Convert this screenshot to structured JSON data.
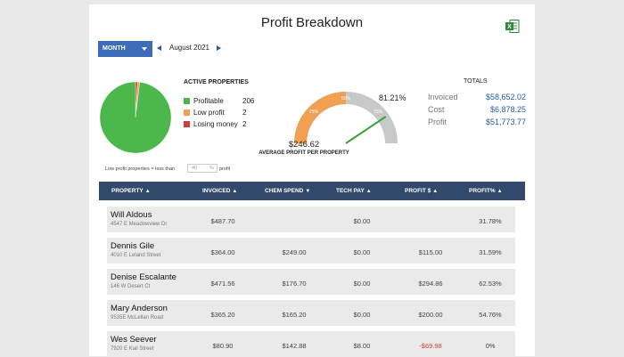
{
  "page": {
    "title": "Profit Breakdown",
    "export_icon": "excel-export-icon"
  },
  "period": {
    "select_label": "MONTH",
    "current": "August 2021"
  },
  "active_properties": {
    "title": "ACTIVE PROPERTIES",
    "items": [
      {
        "label": "Profitable",
        "count": "206",
        "color": "#4cb84c"
      },
      {
        "label": "Low profit",
        "count": "2",
        "color": "#f0a050"
      },
      {
        "label": "Losing money",
        "count": "2",
        "color": "#d23b3b"
      }
    ],
    "low_profit_note": "Low profit properties = less than",
    "low_profit_value": "40",
    "low_profit_unit": "%",
    "low_profit_suffix": "profit"
  },
  "gauge": {
    "percent": "81.21%",
    "average": "$246.62",
    "caption": "AVERAGE PROFIT PER PROPERTY",
    "ticks": [
      "25%",
      "50%",
      "75%"
    ],
    "value_fraction": 0.8121,
    "colors": {
      "low": "#f0a050",
      "rest": "#c8c8c8",
      "needle": "#3aa03a"
    }
  },
  "totals": {
    "title": "TOTALS",
    "rows": [
      {
        "label": "Invoiced",
        "value": "$58,652.02"
      },
      {
        "label": "Cost",
        "value": "$6,878.25"
      },
      {
        "label": "Profit",
        "value": "$51,773.77"
      }
    ]
  },
  "table": {
    "headers": [
      {
        "label": "PROPERTY",
        "icon": "sort-icon"
      },
      {
        "label": "INVOICED",
        "icon": "sort-icon"
      },
      {
        "label": "CHEM SPEND",
        "icon": "sort-desc-icon"
      },
      {
        "label": "TECH PAY",
        "icon": "sort-icon"
      },
      {
        "label": "PROFIT $",
        "icon": "sort-icon"
      },
      {
        "label": "PROFIT%",
        "icon": "sort-icon"
      }
    ],
    "rows": [
      {
        "name": "Will Aldous",
        "address": "4547 E Meadowview Dr",
        "invoiced": "$487.70",
        "chem": "",
        "tech": "$0.00",
        "profit": "",
        "profit_pct": "31.78%"
      },
      {
        "name": "Dennis Gile",
        "address": "4010 E Leland Street",
        "invoiced": "$364.00",
        "chem": "$249.00",
        "tech": "$0.00",
        "profit": "$115.00",
        "profit_pct": "31.59%"
      },
      {
        "name": "Denise Escalante",
        "address": "146 W Desert Ct",
        "invoiced": "$471.56",
        "chem": "$176.70",
        "tech": "$0.00",
        "profit": "$294.86",
        "profit_pct": "62.53%"
      },
      {
        "name": "Mary Anderson",
        "address": "9535E McLellan Road",
        "invoiced": "$365.20",
        "chem": "$165.20",
        "tech": "$0.00",
        "profit": "$200.00",
        "profit_pct": "54.76%"
      },
      {
        "name": "Wes Seever",
        "address": "7920 E Kail Street",
        "invoiced": "$80.90",
        "chem": "$142.88",
        "tech": "$8.00",
        "profit": "-$69.98",
        "profit_pct": "0%"
      }
    ]
  }
}
